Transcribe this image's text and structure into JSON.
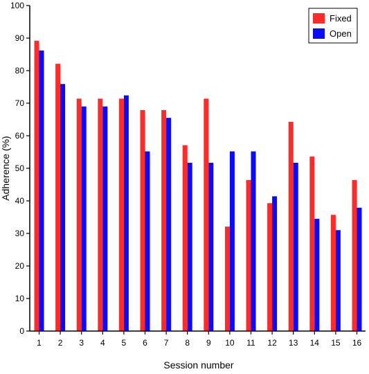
{
  "chart_data": {
    "type": "bar",
    "title": "",
    "xlabel": "Session number",
    "ylabel": "Adherence (%)",
    "ylim": [
      0,
      100
    ],
    "yticks": [
      0,
      10,
      20,
      30,
      40,
      50,
      60,
      70,
      80,
      90,
      100
    ],
    "categories": [
      "1",
      "2",
      "3",
      "4",
      "5",
      "6",
      "7",
      "8",
      "9",
      "10",
      "11",
      "12",
      "13",
      "14",
      "15",
      "16"
    ],
    "series": [
      {
        "name": "Fixed",
        "color": "#ff2a2a",
        "values": [
          89.2,
          82.1,
          71.4,
          71.4,
          71.4,
          67.9,
          67.9,
          57.1,
          71.4,
          32.1,
          46.4,
          39.3,
          64.3,
          53.6,
          35.7,
          46.4
        ]
      },
      {
        "name": "Open",
        "color": "#0a0aff",
        "values": [
          86.2,
          75.9,
          69.0,
          69.0,
          72.4,
          55.2,
          65.5,
          51.7,
          51.7,
          55.2,
          55.2,
          41.4,
          51.7,
          34.5,
          31.0,
          37.9
        ]
      }
    ],
    "grid": false,
    "legend_position": "top-right"
  }
}
